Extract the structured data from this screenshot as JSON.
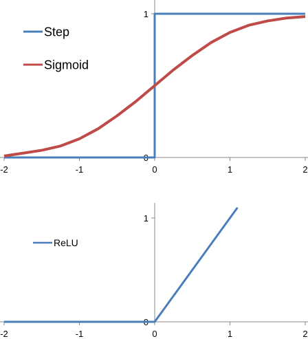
{
  "chart_data": [
    {
      "type": "line",
      "title": "",
      "xlabel": "",
      "ylabel": "",
      "xlim": [
        -2,
        2
      ],
      "ylim": [
        0,
        1
      ],
      "x_ticks": [
        "-2",
        "-1",
        "0",
        "1",
        "2"
      ],
      "y_ticks": [
        "0",
        "1"
      ],
      "legend": "top-left",
      "grid": false,
      "series": [
        {
          "name": "Step",
          "color": "#4A7EBB",
          "x": [
            -2,
            0,
            0,
            2
          ],
          "y": [
            0,
            0,
            1,
            1
          ]
        },
        {
          "name": "Sigmoid",
          "color": "#BE4B48",
          "x": [
            -2,
            -1.75,
            -1.5,
            -1.25,
            -1,
            -0.75,
            -0.5,
            -0.25,
            0,
            0.25,
            0.5,
            0.75,
            1,
            1.25,
            1.5,
            1.75,
            2
          ],
          "y": [
            0.01,
            0.03,
            0.05,
            0.08,
            0.13,
            0.2,
            0.29,
            0.39,
            0.5,
            0.61,
            0.71,
            0.8,
            0.87,
            0.92,
            0.95,
            0.97,
            0.98
          ]
        }
      ]
    },
    {
      "type": "line",
      "title": "",
      "xlabel": "",
      "ylabel": "",
      "xlim": [
        -2,
        2
      ],
      "ylim": [
        0,
        1
      ],
      "x_ticks": [
        "-2",
        "-1",
        "0",
        "1",
        "2"
      ],
      "y_ticks": [
        "0",
        "1"
      ],
      "legend": "top-left",
      "grid": false,
      "series": [
        {
          "name": "ReLU",
          "color": "#4A7EBB",
          "x": [
            -2,
            0,
            1.1
          ],
          "y": [
            0,
            0,
            1.1
          ]
        }
      ]
    }
  ]
}
